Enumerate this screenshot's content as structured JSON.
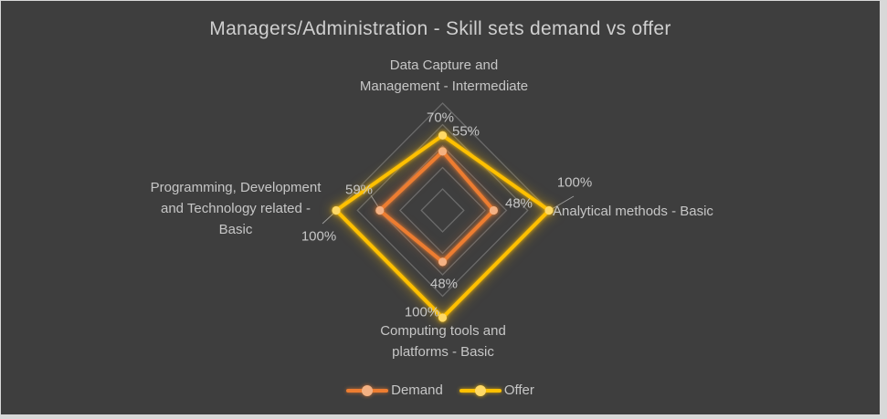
{
  "title": "Managers/Administration - Skill sets demand vs offer",
  "colors": {
    "background": "#3E3E3E",
    "surround": "#D8D8D8",
    "grid": "#6B6B6B",
    "text": "#C6C6C6",
    "title_text": "#CFCFCF",
    "demand": "#ED7D31",
    "demand_marker": "#F4B183",
    "offer": "#FFC000",
    "offer_marker": "#FFD966"
  },
  "axis_labels": {
    "top": "Data Capture and\nManagement - Intermediate",
    "right": "Analytical methods - Basic",
    "bottom": "Computing tools and\nplatforms - Basic",
    "left": "Programming, Development\nand Technology related -\nBasic"
  },
  "data_labels": {
    "top_offer": "70%",
    "top_demand": "55%",
    "right_offer": "100%",
    "right_demand": "48%",
    "bottom_offer": "100%",
    "bottom_demand": "48%",
    "left_offer": "100%",
    "left_demand": "59%"
  },
  "legend": {
    "items": [
      {
        "label": "Demand"
      },
      {
        "label": "Offer"
      }
    ]
  },
  "chart_data": {
    "type": "radar",
    "title": "Managers/Administration - Skill sets demand vs offer",
    "categories": [
      "Data Capture and Management - Intermediate",
      "Analytical methods - Basic",
      "Computing tools and platforms - Basic",
      "Programming, Development and Technology related - Basic"
    ],
    "series": [
      {
        "name": "Demand",
        "color": "#ED7D31",
        "marker_color": "#F4B183",
        "values": [
          55,
          48,
          48,
          59
        ]
      },
      {
        "name": "Offer",
        "color": "#FFC000",
        "marker_color": "#FFD966",
        "values": [
          70,
          100,
          100,
          100
        ]
      }
    ],
    "value_unit": "%",
    "rmin": 0,
    "rmax": 100,
    "grid_steps": [
      20,
      40,
      60,
      80,
      100
    ],
    "grid_shape": "diamond",
    "legend_position": "bottom"
  }
}
